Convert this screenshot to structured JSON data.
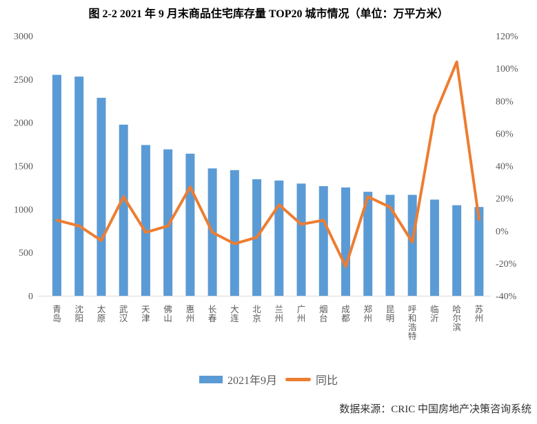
{
  "title": "图 2-2 2021 年 9 月末商品住宅库存量 TOP20 城市情况（单位：万平方米）",
  "source": "数据来源：CRIC 中国房地产决策咨询系统",
  "legend": {
    "bar_label": "2021年9月",
    "line_label": "同比"
  },
  "colors": {
    "bar": "#5B9BD5",
    "line": "#ED7D31",
    "axis_text": "#595959",
    "category_text": "#595959",
    "axis_line": "#D9D9D9",
    "title_text": "#000000",
    "source_text": "#333333"
  },
  "chart_data": {
    "type": "bar",
    "subtype": "combo-bar-line-dual-axis",
    "title": "图 2-2 2021 年 9 月末商品住宅库存量 TOP20 城市情况（单位：万平方米）",
    "categories": [
      "青岛",
      "沈阳",
      "太原",
      "武汉",
      "天津",
      "佛山",
      "惠州",
      "长春",
      "大连",
      "北京",
      "兰州",
      "广州",
      "烟台",
      "成都",
      "郑州",
      "昆明",
      "呼和浩特",
      "临沂",
      "哈尔滨",
      "苏州"
    ],
    "series": [
      {
        "name": "2021年9月",
        "type": "bar",
        "axis": "left",
        "unit": "万平方米",
        "values": [
          2550,
          2530,
          2285,
          1975,
          1740,
          1690,
          1640,
          1470,
          1450,
          1345,
          1330,
          1295,
          1265,
          1250,
          1200,
          1165,
          1165,
          1110,
          1045,
          1025
        ]
      },
      {
        "name": "同比",
        "type": "line",
        "axis": "right",
        "unit": "%",
        "values": [
          6.5,
          3,
          -6,
          21,
          -1,
          3,
          27,
          -1,
          -8,
          -4,
          16,
          4,
          6.5,
          -22,
          21,
          14.5,
          -7,
          71,
          104,
          7
        ]
      }
    ],
    "left_axis": {
      "min": 0,
      "max": 3000,
      "step": 500,
      "ticks": [
        {
          "value": 0,
          "label": "0"
        },
        {
          "value": 500,
          "label": "500"
        },
        {
          "value": 1000,
          "label": "1000"
        },
        {
          "value": 1500,
          "label": "1500"
        },
        {
          "value": 2000,
          "label": "2000"
        },
        {
          "value": 2500,
          "label": "2500"
        },
        {
          "value": 3000,
          "label": "3000"
        }
      ]
    },
    "right_axis": {
      "min": -40,
      "max": 120,
      "step": 20,
      "ticks": [
        {
          "value": -40,
          "label": "-40%"
        },
        {
          "value": -20,
          "label": "-20%"
        },
        {
          "value": 0,
          "label": "0%"
        },
        {
          "value": 20,
          "label": "20%"
        },
        {
          "value": 40,
          "label": "40%"
        },
        {
          "value": 60,
          "label": "60%"
        },
        {
          "value": 80,
          "label": "80%"
        },
        {
          "value": 100,
          "label": "100%"
        },
        {
          "value": 120,
          "label": "120%"
        }
      ]
    },
    "grid": false,
    "legend_position": "bottom"
  }
}
